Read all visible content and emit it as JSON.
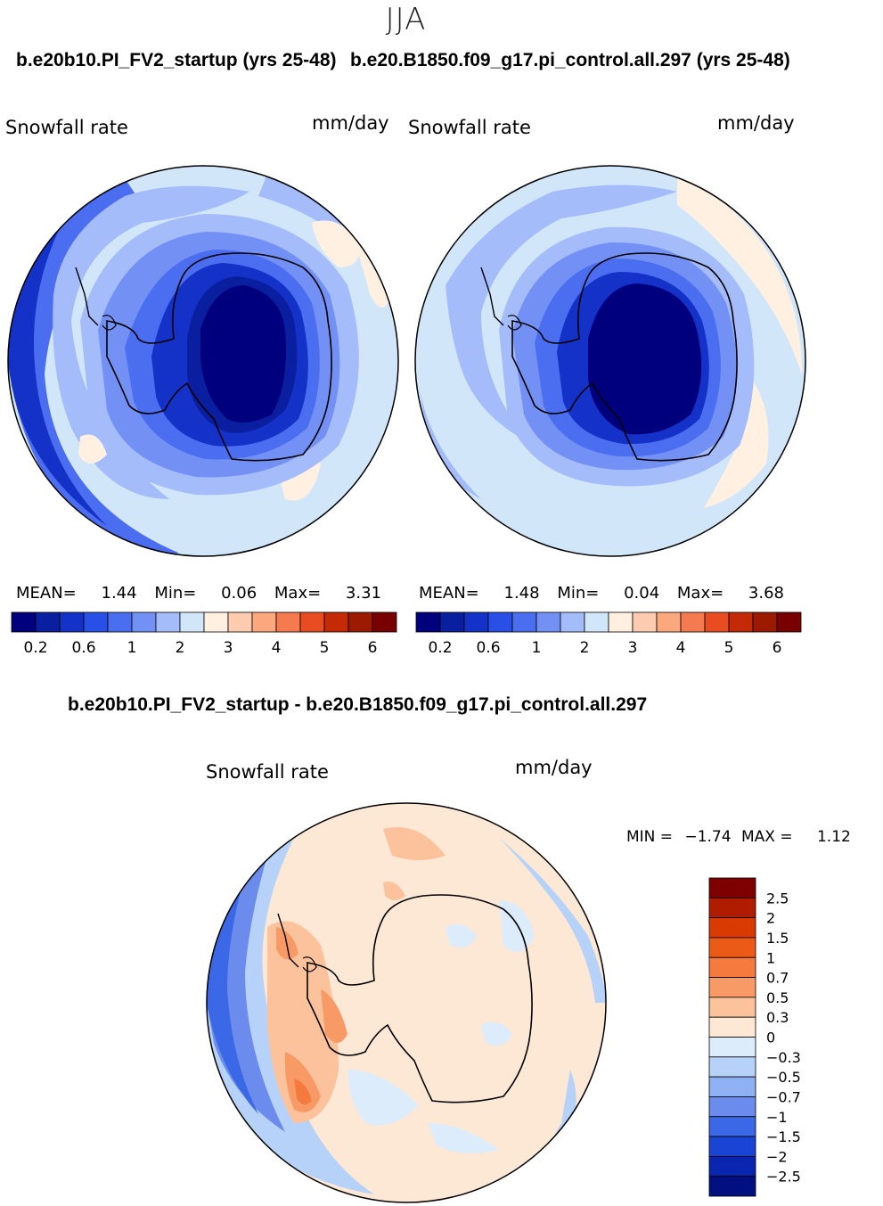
{
  "season": "JJA",
  "panels": [
    {
      "case": "b.e20b10.PI_FV2_startup (yrs 25-48)",
      "variable": "Snowfall rate",
      "units": "mm/day",
      "stats": {
        "mean_label": "MEAN=",
        "mean": "1.44",
        "min_label": "Min=",
        "min": "0.06",
        "max_label": "Max=",
        "max": "3.31"
      }
    },
    {
      "case": "b.e20.B1850.f09_g17.pi_control.all.297 (yrs 25-48)",
      "variable": "Snowfall rate",
      "units": "mm/day",
      "stats": {
        "mean_label": "MEAN=",
        "mean": "1.48",
        "min_label": "Min=",
        "min": "0.04",
        "max_label": "Max=",
        "max": "3.68"
      }
    }
  ],
  "colorbar_top": {
    "colors": [
      "#00007f",
      "#0a1ea0",
      "#1432c8",
      "#2850e6",
      "#4b6ef0",
      "#7391f5",
      "#a5bcfa",
      "#d2e6fa",
      "#fff0e1",
      "#fdccb0",
      "#fba87f",
      "#f57a50",
      "#e84c20",
      "#c42a06",
      "#9c1a00",
      "#780000"
    ],
    "tick_labels": [
      "0.2",
      "0.6",
      "1",
      "2",
      "3",
      "4",
      "5",
      "6"
    ]
  },
  "diff_panel": {
    "title": "b.e20b10.PI_FV2_startup - b.e20.B1850.f09_g17.pi_control.all.297",
    "variable": "Snowfall rate",
    "units": "mm/day",
    "min_label": "MIN =",
    "min": "−1.74",
    "max_label": "MAX =",
    "max": "1.12"
  },
  "colorbar_diff": {
    "colors_top_to_bottom": [
      "#7f0000",
      "#b01c00",
      "#d83a00",
      "#ec5a18",
      "#f57a3e",
      "#f89a66",
      "#fbc29c",
      "#fde8d5",
      "#dcecfa",
      "#b7d2f8",
      "#8fb0f2",
      "#6b8cec",
      "#3a68e6",
      "#1a44d4",
      "#0a26b0",
      "#00107f"
    ],
    "labels_top_to_bottom": [
      "2.5",
      "2",
      "1.5",
      "1",
      "0.7",
      "0.5",
      "0.3",
      "0",
      "−0.3",
      "−0.5",
      "−0.7",
      "−1",
      "−1.5",
      "−2",
      "−2.5"
    ]
  },
  "map_layers": {
    "left": {
      "background": "#d2e6fa",
      "layers": [
        {
          "name": "ring-outer",
          "color": "#2850e6"
        },
        {
          "name": "ring-mid",
          "color": "#4b6ef0"
        },
        {
          "name": "ring-inner",
          "color": "#7391f5"
        },
        {
          "name": "ocean-light",
          "color": "#d2e6fa"
        },
        {
          "name": "sea-ice-zone",
          "color": "#a5bcfa"
        },
        {
          "name": "coastal-1",
          "color": "#7391f5"
        },
        {
          "name": "coastal-2",
          "color": "#4b6ef0"
        },
        {
          "name": "coastal-3",
          "color": "#1432c8"
        },
        {
          "name": "interior",
          "color": "#00007f"
        }
      ],
      "warm_patches": "#fff0e1"
    },
    "right": {
      "background": "#d2e6fa",
      "layers": [
        {
          "name": "ocean-light",
          "color": "#d2e6fa"
        },
        {
          "name": "sea-ice-zone",
          "color": "#a5bcfa"
        },
        {
          "name": "coastal-1",
          "color": "#7391f5"
        },
        {
          "name": "coastal-2",
          "color": "#4b6ef0"
        },
        {
          "name": "coastal-3",
          "color": "#1432c8"
        },
        {
          "name": "interior",
          "color": "#00007f"
        }
      ],
      "warm_patches": "#fff0e1"
    },
    "diff": {
      "background": "#fde8d5",
      "cool_ring": [
        "#3a68e6",
        "#6b8cec",
        "#b7d2f8"
      ],
      "warm_patches": [
        "#fbc29c",
        "#f89a66",
        "#f57a3e"
      ],
      "cool_patches": "#dcecfa"
    }
  }
}
